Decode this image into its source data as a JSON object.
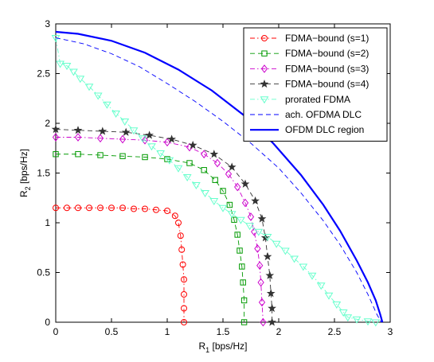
{
  "chart_data": {
    "type": "line",
    "xlabel": "R",
    "xlabel_sub": "1",
    "xlabel_unit": " [bps/Hz]",
    "ylabel": "R",
    "ylabel_sub": "2",
    "ylabel_unit": " [bps/Hz]",
    "xlim": [
      0,
      3
    ],
    "ylim": [
      0,
      3
    ],
    "xticks": [
      "0",
      "0.5",
      "1",
      "1.5",
      "2",
      "2.5",
      "3"
    ],
    "yticks": [
      "0",
      "0.5",
      "1",
      "1.5",
      "2",
      "2.5",
      "3"
    ],
    "grid": false,
    "legend_position": "top-right",
    "series": [
      {
        "name": "FDMA−bound (s=1)",
        "color": "#ff0000",
        "line": "dashdot",
        "marker": "circle",
        "x": [
          0,
          0.1,
          0.2,
          0.3,
          0.4,
          0.5,
          0.6,
          0.7,
          0.8,
          0.9,
          1.0,
          1.07,
          1.1,
          1.12,
          1.13,
          1.14,
          1.15,
          1.15,
          1.15,
          1.15
        ],
        "y": [
          1.15,
          1.15,
          1.15,
          1.15,
          1.15,
          1.15,
          1.15,
          1.14,
          1.14,
          1.13,
          1.12,
          1.07,
          1.0,
          0.87,
          0.73,
          0.58,
          0.43,
          0.28,
          0.14,
          0.0
        ]
      },
      {
        "name": "FDMA−bound (s=2)",
        "color": "#009900",
        "line": "dashed",
        "marker": "square",
        "x": [
          0,
          0.2,
          0.4,
          0.6,
          0.8,
          1.0,
          1.2,
          1.33,
          1.43,
          1.5,
          1.56,
          1.6,
          1.63,
          1.65,
          1.67,
          1.68,
          1.69,
          1.69
        ],
        "y": [
          1.69,
          1.69,
          1.68,
          1.67,
          1.66,
          1.64,
          1.6,
          1.53,
          1.43,
          1.32,
          1.18,
          1.03,
          0.88,
          0.72,
          0.56,
          0.4,
          0.22,
          0.0
        ]
      },
      {
        "name": "FDMA−bound (s=3)",
        "color": "#cc00cc",
        "line": "dashdot",
        "marker": "diamond",
        "x": [
          0,
          0.2,
          0.4,
          0.6,
          0.8,
          1.0,
          1.2,
          1.33,
          1.45,
          1.55,
          1.63,
          1.7,
          1.75,
          1.78,
          1.81,
          1.83,
          1.84,
          1.85,
          1.86
        ],
        "y": [
          1.86,
          1.86,
          1.85,
          1.84,
          1.83,
          1.81,
          1.76,
          1.69,
          1.6,
          1.49,
          1.36,
          1.2,
          1.06,
          0.91,
          0.74,
          0.57,
          0.4,
          0.2,
          0.0
        ]
      },
      {
        "name": "FDMA−bound (s=4)",
        "color": "#333333",
        "line": "dashed",
        "marker": "star",
        "x": [
          0,
          0.2,
          0.42,
          0.63,
          0.84,
          1.04,
          1.23,
          1.42,
          1.58,
          1.7,
          1.79,
          1.85,
          1.88,
          1.9,
          1.92,
          1.93,
          1.94,
          1.94
        ],
        "y": [
          1.94,
          1.93,
          1.92,
          1.91,
          1.88,
          1.84,
          1.78,
          1.69,
          1.56,
          1.39,
          1.22,
          1.04,
          0.85,
          0.66,
          0.47,
          0.29,
          0.14,
          0.0
        ]
      },
      {
        "name": "prorated FDMA",
        "color": "#66ffcc",
        "line": "dashdot",
        "marker": "triangle-down",
        "x": [
          0,
          0.04,
          0.1,
          0.16,
          0.22,
          0.3,
          0.38,
          0.46,
          0.54,
          0.62,
          0.7,
          0.78,
          0.86,
          0.94,
          1.02,
          1.1,
          1.18,
          1.26,
          1.34,
          1.42,
          1.5,
          1.58,
          1.66,
          1.74,
          1.82,
          1.9,
          1.98,
          2.06,
          2.14,
          2.22,
          2.3,
          2.38,
          2.45,
          2.52,
          2.58,
          2.62,
          2.7,
          2.8,
          2.87
        ],
        "y": [
          2.86,
          2.6,
          2.58,
          2.52,
          2.45,
          2.37,
          2.28,
          2.19,
          2.1,
          2.02,
          1.93,
          1.85,
          1.77,
          1.7,
          1.63,
          1.55,
          1.46,
          1.38,
          1.3,
          1.22,
          1.15,
          1.09,
          1.03,
          0.97,
          0.91,
          0.86,
          0.79,
          0.72,
          0.64,
          0.56,
          0.47,
          0.37,
          0.27,
          0.18,
          0.1,
          0.05,
          0.03,
          0.01,
          0.0
        ]
      },
      {
        "name": "ach. OFDMA DLC",
        "color": "#0000ff",
        "line": "dashed",
        "marker": "none",
        "x": [
          0,
          0.25,
          0.5,
          0.75,
          1.0,
          1.25,
          1.5,
          1.75,
          2.0,
          2.2,
          2.4,
          2.55,
          2.7,
          2.8,
          2.88,
          2.92
        ],
        "y": [
          2.86,
          2.8,
          2.7,
          2.57,
          2.4,
          2.22,
          2.02,
          1.8,
          1.55,
          1.3,
          1.02,
          0.78,
          0.5,
          0.28,
          0.08,
          0.0
        ]
      },
      {
        "name": "OFDM DLC region",
        "color": "#0000ff",
        "line": "solid",
        "marker": "none",
        "x": [
          0,
          0.2,
          0.5,
          0.8,
          1.1,
          1.4,
          1.7,
          1.95,
          2.2,
          2.4,
          2.55,
          2.7,
          2.8,
          2.87,
          2.91,
          2.93
        ],
        "y": [
          2.92,
          2.9,
          2.83,
          2.71,
          2.54,
          2.33,
          2.07,
          1.8,
          1.48,
          1.18,
          0.92,
          0.62,
          0.4,
          0.22,
          0.08,
          0.0
        ]
      }
    ]
  }
}
